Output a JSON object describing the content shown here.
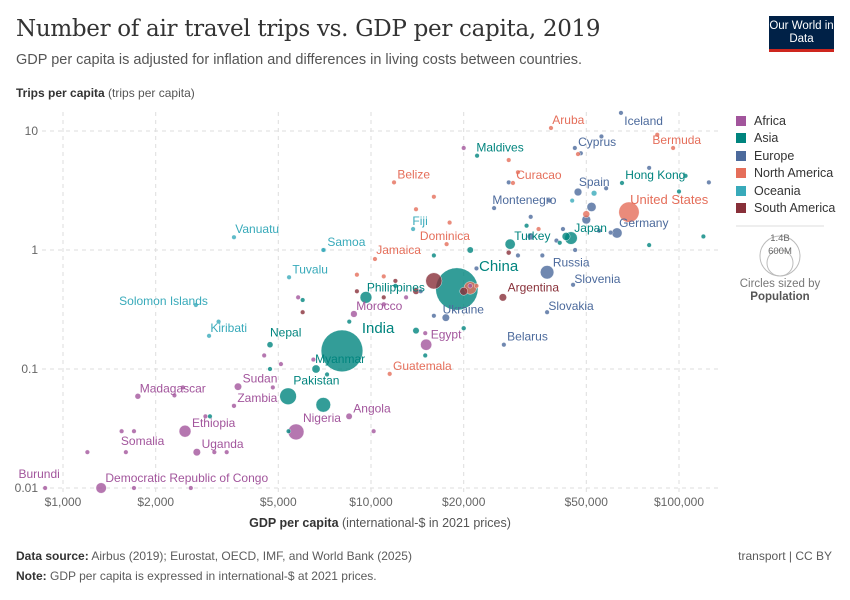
{
  "header": {
    "title": "Number of air travel trips vs. GDP per capita, 2019",
    "subtitle": "GDP per capita is adjusted for inflation and differences in living costs between countries.",
    "logo": "Our World in Data"
  },
  "footer": {
    "source_label": "Data source:",
    "source": "Airbus (2019); Eurostat, OECD, IMF, and World Bank (2025)",
    "note_label": "Note:",
    "note": "GDP per capita is expressed in international-$ at 2021 prices.",
    "license": "transport | CC BY"
  },
  "size_legend": {
    "large": "1.4B",
    "small": "600M",
    "caption": "Circles sized by",
    "variable": "Population"
  },
  "chart_data": {
    "type": "scatter",
    "title": "Number of air travel trips vs. GDP per capita, 2019",
    "xlabel_bold": "GDP per capita",
    "xlabel_unit": "(international-$ in 2021 prices)",
    "ylabel_bold": "Trips per capita",
    "ylabel_unit": "(trips per capita)",
    "xscale": "log",
    "yscale": "log",
    "xlim": [
      870,
      130000
    ],
    "ylim": [
      0.01,
      13
    ],
    "grid": true,
    "xticks": [
      {
        "v": 1000,
        "label": "$1,000"
      },
      {
        "v": 2000,
        "label": "$2,000"
      },
      {
        "v": 5000,
        "label": "$5,000"
      },
      {
        "v": 10000,
        "label": "$10,000"
      },
      {
        "v": 20000,
        "label": "$20,000"
      },
      {
        "v": 50000,
        "label": "$50,000"
      },
      {
        "v": 100000,
        "label": "$100,000"
      }
    ],
    "yticks": [
      {
        "v": 10,
        "label": "10"
      },
      {
        "v": 1,
        "label": "1"
      },
      {
        "v": 0.1,
        "label": "0.1"
      },
      {
        "v": 0.01,
        "label": "0.01"
      }
    ],
    "legend_position": "right",
    "regions": [
      {
        "name": "Africa",
        "color": "#a2559c"
      },
      {
        "name": "Asia",
        "color": "#00847e"
      },
      {
        "name": "Europe",
        "color": "#4c6a9c"
      },
      {
        "name": "North America",
        "color": "#e56e5a"
      },
      {
        "name": "Oceania",
        "color": "#38aaba"
      },
      {
        "name": "South America",
        "color": "#883039"
      }
    ],
    "points": [
      {
        "name": "Aruba",
        "x": 38400,
        "y": 10.6,
        "region": "North America",
        "pop": 0.1
      },
      {
        "name": "Iceland",
        "x": 64800,
        "y": 14.2,
        "region": "Europe",
        "pop": 0.36
      },
      {
        "name": "Cyprus",
        "x": 45900,
        "y": 7.2,
        "region": "Europe",
        "pop": 1.2
      },
      {
        "name": "Bermuda",
        "x": 95700,
        "y": 7.2,
        "region": "North America",
        "pop": 0.06
      },
      {
        "name": "Maldives",
        "x": 22100,
        "y": 6.2,
        "region": "Asia",
        "pop": 0.5
      },
      {
        "name": "Belize",
        "x": 11880,
        "y": 3.7,
        "region": "North America",
        "pop": 0.4
      },
      {
        "name": "Curacao",
        "x": 28900,
        "y": 3.66,
        "region": "North America",
        "pop": 0.15
      },
      {
        "name": "Montenegro",
        "x": 25100,
        "y": 2.25,
        "region": "Europe",
        "pop": 0.6
      },
      {
        "name": "Spain",
        "x": 47000,
        "y": 3.07,
        "region": "Europe",
        "pop": 47
      },
      {
        "name": "Hong Kong",
        "x": 65300,
        "y": 3.66,
        "region": "Asia",
        "pop": 7.5
      },
      {
        "name": "United States",
        "x": 68800,
        "y": 2.08,
        "region": "North America",
        "pop": 330
      },
      {
        "name": "Germany",
        "x": 62900,
        "y": 1.39,
        "region": "Europe",
        "pop": 83
      },
      {
        "name": "Japan",
        "x": 44600,
        "y": 1.26,
        "region": "Asia",
        "pop": 126
      },
      {
        "name": "Turkey",
        "x": 28300,
        "y": 1.12,
        "region": "Asia",
        "pop": 83
      },
      {
        "name": "Dominica",
        "x": 17600,
        "y": 1.12,
        "region": "North America",
        "pop": 0.07
      },
      {
        "name": "Fiji",
        "x": 13700,
        "y": 1.5,
        "region": "Oceania",
        "pop": 0.9
      },
      {
        "name": "Jamaica",
        "x": 10300,
        "y": 0.84,
        "region": "North America",
        "pop": 2.8
      },
      {
        "name": "Vanuatu",
        "x": 3590,
        "y": 1.28,
        "region": "Oceania",
        "pop": 0.3
      },
      {
        "name": "Samoa",
        "x": 7040,
        "y": 1.0,
        "region": "Oceania",
        "pop": 0.2
      },
      {
        "name": "Tuvalu",
        "x": 5420,
        "y": 0.59,
        "region": "Oceania",
        "pop": 0.01
      },
      {
        "name": "China",
        "x": 19000,
        "y": 0.47,
        "region": "Asia",
        "pop": 1420
      },
      {
        "name": "Argentina",
        "x": 26800,
        "y": 0.4,
        "region": "South America",
        "pop": 45
      },
      {
        "name": "Philippines",
        "x": 9630,
        "y": 0.4,
        "region": "Asia",
        "pop": 110
      },
      {
        "name": "Russia",
        "x": 37300,
        "y": 0.65,
        "region": "Europe",
        "pop": 145
      },
      {
        "name": "Slovenia",
        "x": 45300,
        "y": 0.51,
        "region": "Europe",
        "pop": 2.1
      },
      {
        "name": "Slovakia",
        "x": 37300,
        "y": 0.3,
        "region": "Europe",
        "pop": 5.5
      },
      {
        "name": "Ukraine",
        "x": 17500,
        "y": 0.27,
        "region": "Europe",
        "pop": 44
      },
      {
        "name": "Morocco",
        "x": 8800,
        "y": 0.29,
        "region": "Africa",
        "pop": 36
      },
      {
        "name": "Solomon Islands",
        "x": 2700,
        "y": 0.345,
        "region": "Oceania",
        "pop": 0.7
      },
      {
        "name": "Kiribati",
        "x": 2980,
        "y": 0.19,
        "region": "Oceania",
        "pop": 0.12
      },
      {
        "name": "Nepal",
        "x": 4700,
        "y": 0.16,
        "region": "Asia",
        "pop": 29
      },
      {
        "name": "India",
        "x": 8050,
        "y": 0.142,
        "region": "Asia",
        "pop": 1380
      },
      {
        "name": "Egypt",
        "x": 15100,
        "y": 0.16,
        "region": "Africa",
        "pop": 100
      },
      {
        "name": "Belarus",
        "x": 27000,
        "y": 0.16,
        "region": "Europe",
        "pop": 9.4
      },
      {
        "name": "Myanmar",
        "x": 6630,
        "y": 0.1,
        "region": "Asia",
        "pop": 53
      },
      {
        "name": "Guatemala",
        "x": 11500,
        "y": 0.091,
        "region": "North America",
        "pop": 17
      },
      {
        "name": "Sudan",
        "x": 3700,
        "y": 0.071,
        "region": "Africa",
        "pop": 43
      },
      {
        "name": "Madagascar",
        "x": 1750,
        "y": 0.059,
        "region": "Africa",
        "pop": 27
      },
      {
        "name": "Pakistan",
        "x": 5380,
        "y": 0.059,
        "region": "Asia",
        "pop": 220
      },
      {
        "name": "Zambia",
        "x": 3590,
        "y": 0.049,
        "region": "Africa",
        "pop": 18
      },
      {
        "name": "Angola",
        "x": 8490,
        "y": 0.04,
        "region": "Africa",
        "pop": 32
      },
      {
        "name": "Nigeria",
        "x": 5710,
        "y": 0.0296,
        "region": "Africa",
        "pop": 200
      },
      {
        "name": "Ethiopia",
        "x": 2490,
        "y": 0.03,
        "region": "Africa",
        "pop": 112
      },
      {
        "name": "Uganda",
        "x": 2720,
        "y": 0.02,
        "region": "Africa",
        "pop": 44
      },
      {
        "name": "Somalia",
        "x": 1550,
        "y": 0.03,
        "region": "Africa",
        "pop": 16
      },
      {
        "name": "Burundi",
        "x": 875,
        "y": 0.01,
        "region": "Africa",
        "pop": 12
      },
      {
        "name": "Democratic Republic of Congo",
        "x": 1330,
        "y": 0.01,
        "region": "Africa",
        "pop": 87
      },
      {
        "x": 1200,
        "y": 0.02,
        "region": "Africa",
        "pop": 5
      },
      {
        "x": 1600,
        "y": 0.02,
        "region": "Africa",
        "pop": 5
      },
      {
        "x": 1700,
        "y": 0.03,
        "region": "Africa",
        "pop": 4
      },
      {
        "x": 2300,
        "y": 0.06,
        "region": "Africa",
        "pop": 3
      },
      {
        "x": 2450,
        "y": 0.07,
        "region": "Africa",
        "pop": 6
      },
      {
        "x": 3100,
        "y": 0.02,
        "region": "Africa",
        "pop": 8
      },
      {
        "x": 3400,
        "y": 0.02,
        "region": "Africa",
        "pop": 5
      },
      {
        "x": 2900,
        "y": 0.04,
        "region": "Africa",
        "pop": 3
      },
      {
        "x": 4500,
        "y": 0.13,
        "region": "Africa",
        "pop": 2
      },
      {
        "x": 5100,
        "y": 0.11,
        "region": "Africa",
        "pop": 10
      },
      {
        "x": 6500,
        "y": 0.12,
        "region": "Africa",
        "pop": 4
      },
      {
        "x": 10200,
        "y": 0.03,
        "region": "Africa",
        "pop": 2
      },
      {
        "x": 11000,
        "y": 0.35,
        "region": "Africa",
        "pop": 12
      },
      {
        "x": 13000,
        "y": 0.4,
        "region": "Africa",
        "pop": 1.2
      },
      {
        "x": 15000,
        "y": 0.2,
        "region": "Africa",
        "pop": 2
      },
      {
        "x": 21000,
        "y": 0.5,
        "region": "Africa",
        "pop": 1.3
      },
      {
        "x": 4800,
        "y": 0.07,
        "region": "Africa",
        "pop": 3
      },
      {
        "x": 1700,
        "y": 0.01,
        "region": "Africa",
        "pop": 5
      },
      {
        "x": 2600,
        "y": 0.01,
        "region": "Africa",
        "pop": 3
      },
      {
        "x": 5800,
        "y": 0.4,
        "region": "Africa",
        "pop": 1
      },
      {
        "x": 20000,
        "y": 7.2,
        "region": "Africa",
        "pop": 0.1
      },
      {
        "x": 3000,
        "y": 0.04,
        "region": "Asia",
        "pop": 2
      },
      {
        "x": 4700,
        "y": 0.1,
        "region": "Asia",
        "pop": 2
      },
      {
        "x": 5400,
        "y": 0.03,
        "region": "Asia",
        "pop": 5
      },
      {
        "x": 6000,
        "y": 0.38,
        "region": "Asia",
        "pop": 3
      },
      {
        "x": 7200,
        "y": 0.09,
        "region": "Asia",
        "pop": 4
      },
      {
        "x": 8500,
        "y": 0.25,
        "region": "Asia",
        "pop": 3
      },
      {
        "x": 12000,
        "y": 0.5,
        "region": "Asia",
        "pop": 3
      },
      {
        "x": 14000,
        "y": 0.21,
        "region": "Asia",
        "pop": 33
      },
      {
        "x": 16000,
        "y": 0.9,
        "region": "Asia",
        "pop": 3
      },
      {
        "x": 20000,
        "y": 0.22,
        "region": "Asia",
        "pop": 18
      },
      {
        "x": 21000,
        "y": 1.0,
        "region": "Asia",
        "pop": 32
      },
      {
        "x": 32000,
        "y": 1.6,
        "region": "Asia",
        "pop": 9
      },
      {
        "x": 41000,
        "y": 1.15,
        "region": "Asia",
        "pop": 3
      },
      {
        "x": 80000,
        "y": 1.1,
        "region": "Asia",
        "pop": 4
      },
      {
        "x": 105000,
        "y": 4.2,
        "region": "Asia",
        "pop": 0.7
      },
      {
        "x": 120000,
        "y": 1.3,
        "region": "Asia",
        "pop": 3
      },
      {
        "x": 100000,
        "y": 3.1,
        "region": "Asia",
        "pop": 5.7
      },
      {
        "x": 15000,
        "y": 0.13,
        "region": "Asia",
        "pop": 8
      },
      {
        "x": 7000,
        "y": 0.05,
        "region": "Asia",
        "pop": 170
      },
      {
        "x": 43000,
        "y": 1.3,
        "region": "Asia",
        "pop": 51
      },
      {
        "x": 14500,
        "y": 0.45,
        "region": "Europe",
        "pop": 3
      },
      {
        "x": 16000,
        "y": 0.28,
        "region": "Europe",
        "pop": 2
      },
      {
        "x": 22000,
        "y": 0.7,
        "region": "Europe",
        "pop": 3
      },
      {
        "x": 30000,
        "y": 0.9,
        "region": "Europe",
        "pop": 7
      },
      {
        "x": 33000,
        "y": 1.3,
        "region": "Europe",
        "pop": 38
      },
      {
        "x": 36000,
        "y": 0.9,
        "region": "Europe",
        "pop": 4
      },
      {
        "x": 40000,
        "y": 1.2,
        "region": "Europe",
        "pop": 10
      },
      {
        "x": 42000,
        "y": 1.5,
        "region": "Europe",
        "pop": 10
      },
      {
        "x": 50000,
        "y": 1.8,
        "region": "Europe",
        "pop": 60
      },
      {
        "x": 52000,
        "y": 2.3,
        "region": "Europe",
        "pop": 67
      },
      {
        "x": 55000,
        "y": 1.45,
        "region": "Europe",
        "pop": 10
      },
      {
        "x": 58000,
        "y": 3.3,
        "region": "Europe",
        "pop": 5
      },
      {
        "x": 60000,
        "y": 1.4,
        "region": "Europe",
        "pop": 17
      },
      {
        "x": 56000,
        "y": 9,
        "region": "Europe",
        "pop": 0.5
      },
      {
        "x": 48000,
        "y": 6.5,
        "region": "Europe",
        "pop": 2
      },
      {
        "x": 80000,
        "y": 4.9,
        "region": "Europe",
        "pop": 5.4
      },
      {
        "x": 125000,
        "y": 3.7,
        "region": "Europe",
        "pop": 0.6
      },
      {
        "x": 33000,
        "y": 1.9,
        "region": "Europe",
        "pop": 2
      },
      {
        "x": 38000,
        "y": 2.6,
        "region": "Europe",
        "pop": 1.3
      },
      {
        "x": 46000,
        "y": 1.0,
        "region": "Europe",
        "pop": 4
      },
      {
        "x": 28000,
        "y": 3.7,
        "region": "Europe",
        "pop": 1
      },
      {
        "x": 11000,
        "y": 0.6,
        "region": "North America",
        "pop": 2
      },
      {
        "x": 14000,
        "y": 2.2,
        "region": "North America",
        "pop": 0.4
      },
      {
        "x": 16000,
        "y": 2.8,
        "region": "North America",
        "pop": 0.3
      },
      {
        "x": 18000,
        "y": 1.7,
        "region": "North America",
        "pop": 0.3
      },
      {
        "x": 22000,
        "y": 0.5,
        "region": "North America",
        "pop": 6
      },
      {
        "x": 28000,
        "y": 5.7,
        "region": "North America",
        "pop": 0.1
      },
      {
        "x": 30000,
        "y": 4.5,
        "region": "North America",
        "pop": 0.2
      },
      {
        "x": 35000,
        "y": 1.5,
        "region": "North America",
        "pop": 0.4
      },
      {
        "x": 47000,
        "y": 6.4,
        "region": "North America",
        "pop": 0.1
      },
      {
        "x": 9000,
        "y": 0.62,
        "region": "North America",
        "pop": 0.2
      },
      {
        "x": 85000,
        "y": 9.3,
        "region": "North America",
        "pop": 0.06
      },
      {
        "x": 21000,
        "y": 0.48,
        "region": "North America",
        "pop": 127
      },
      {
        "x": 50000,
        "y": 2.0,
        "region": "North America",
        "pop": 38
      },
      {
        "x": 3200,
        "y": 0.25,
        "region": "Oceania",
        "pop": 0.3
      },
      {
        "x": 7000,
        "y": 1.0,
        "region": "Oceania",
        "pop": 0.1
      },
      {
        "x": 53000,
        "y": 3.0,
        "region": "Oceania",
        "pop": 25
      },
      {
        "x": 45000,
        "y": 2.6,
        "region": "Oceania",
        "pop": 5
      },
      {
        "x": 9000,
        "y": 0.45,
        "region": "South America",
        "pop": 11
      },
      {
        "x": 12000,
        "y": 0.55,
        "region": "South America",
        "pop": 7
      },
      {
        "x": 14000,
        "y": 0.45,
        "region": "South America",
        "pop": 33
      },
      {
        "x": 16000,
        "y": 0.55,
        "region": "South America",
        "pop": 210
      },
      {
        "x": 11000,
        "y": 0.4,
        "region": "South America",
        "pop": 3
      },
      {
        "x": 28000,
        "y": 0.95,
        "region": "South America",
        "pop": 19
      },
      {
        "x": 20000,
        "y": 0.45,
        "region": "South America",
        "pop": 50
      },
      {
        "x": 6000,
        "y": 0.3,
        "region": "South America",
        "pop": 0.8
      }
    ]
  }
}
